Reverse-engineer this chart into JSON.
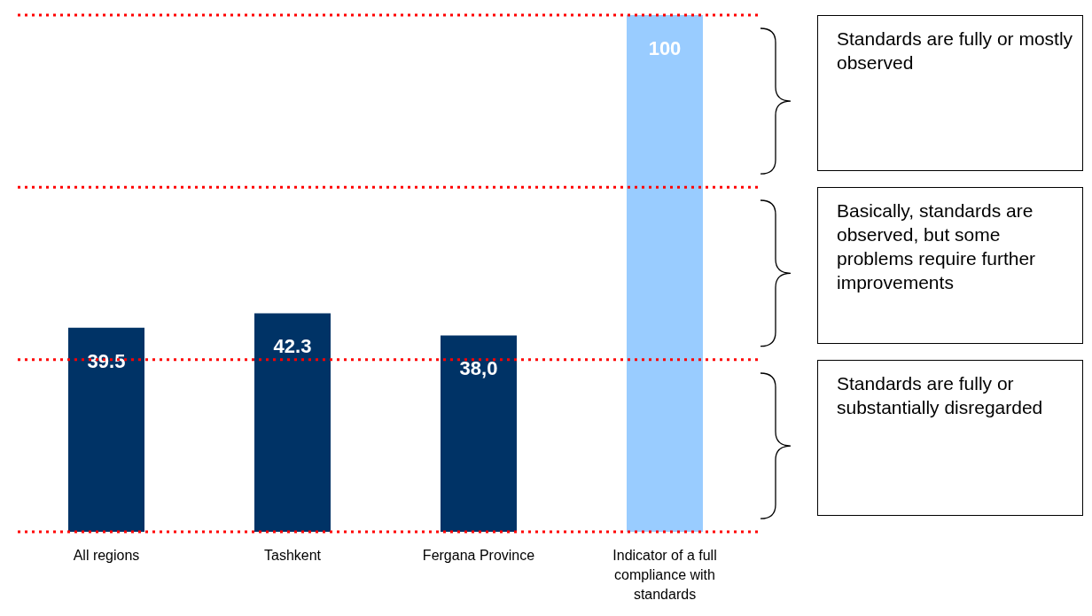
{
  "chart_data": {
    "type": "bar",
    "categories": [
      "All regions",
      "Tashkent",
      "Fergana Province",
      "Indicator of a full compliance with standards"
    ],
    "values": [
      39.5,
      42.3,
      38.0,
      100
    ],
    "colors": [
      "#003366",
      "#003366",
      "#003366",
      "#99ccff"
    ],
    "value_labels": [
      "39.5",
      "42.3",
      "38,0",
      "100"
    ],
    "ylim": [
      0,
      100
    ],
    "ref_lines": [
      {
        "axis": "y",
        "value": 0,
        "color": "#ff0000",
        "line_style": "dotted"
      },
      {
        "axis": "y",
        "value": 33.3,
        "color": "#ff0000",
        "line_style": "dotted"
      },
      {
        "axis": "y",
        "value": 66.7,
        "color": "#ff0000",
        "line_style": "dotted"
      },
      {
        "axis": "y",
        "value": 100,
        "color": "#ff0000",
        "line_style": "dotted"
      }
    ],
    "annotations": [
      "Standards are fully or mostly observed",
      "Basically, standards are observed, but some problems require further improvements",
      "Standards are fully or substantially disregarded"
    ]
  }
}
